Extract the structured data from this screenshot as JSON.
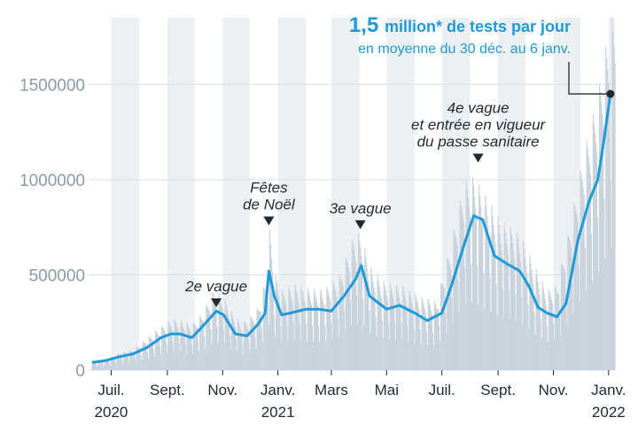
{
  "chart_data": {
    "type": "bar",
    "headline": {
      "value": "1,5",
      "text": "million* de tests par jour",
      "subtitle": "en moyenne du 30 déc. au 6 janv."
    },
    "y_ticks": [
      {
        "value": 0,
        "label": "0"
      },
      {
        "value": 500000,
        "label": "500000"
      },
      {
        "value": 1000000,
        "label": "1000000"
      },
      {
        "value": 1500000,
        "label": "1500000"
      }
    ],
    "ylim": [
      0,
      1850000
    ],
    "x_ticks": [
      {
        "date": "2020-07-01",
        "label": "Juil.",
        "year": "2020"
      },
      {
        "date": "2020-09-01",
        "label": "Sept.",
        "year": ""
      },
      {
        "date": "2020-11-01",
        "label": "Nov.",
        "year": ""
      },
      {
        "date": "2021-01-01",
        "label": "Janv.",
        "year": "2021"
      },
      {
        "date": "2021-03-01",
        "label": "Mars",
        "year": ""
      },
      {
        "date": "2021-05-01",
        "label": "Mai",
        "year": ""
      },
      {
        "date": "2021-07-01",
        "label": "Juil.",
        "year": ""
      },
      {
        "date": "2021-09-01",
        "label": "Sept.",
        "year": ""
      },
      {
        "date": "2021-11-01",
        "label": "Nov.",
        "year": ""
      },
      {
        "date": "2022-01-01",
        "label": "Janv.",
        "year": "2022"
      }
    ],
    "xlim": [
      "2020-06-10",
      "2022-01-08"
    ],
    "series": [
      {
        "kind": "daily_bars",
        "color": "#c9d3dc",
        "points": [
          [
            "2020-06-10",
            50000
          ],
          [
            "2020-06-25",
            60000
          ],
          [
            "2020-07-10",
            90000
          ],
          [
            "2020-07-25",
            110000
          ],
          [
            "2020-08-10",
            170000
          ],
          [
            "2020-08-25",
            230000
          ],
          [
            "2020-09-05",
            270000
          ],
          [
            "2020-09-18",
            260000
          ],
          [
            "2020-09-28",
            240000
          ],
          [
            "2020-10-10",
            300000
          ],
          [
            "2020-10-22",
            420000
          ],
          [
            "2020-11-01",
            400000
          ],
          [
            "2020-11-12",
            300000
          ],
          [
            "2020-11-22",
            250000
          ],
          [
            "2020-12-01",
            280000
          ],
          [
            "2020-12-10",
            330000
          ],
          [
            "2020-12-18",
            470000
          ],
          [
            "2020-12-23",
            740000
          ],
          [
            "2020-12-28",
            520000
          ],
          [
            "2021-01-05",
            420000
          ],
          [
            "2021-01-20",
            450000
          ],
          [
            "2021-02-05",
            430000
          ],
          [
            "2021-02-20",
            420000
          ],
          [
            "2021-03-10",
            500000
          ],
          [
            "2021-03-25",
            700000
          ],
          [
            "2021-04-02",
            720000
          ],
          [
            "2021-04-15",
            520000
          ],
          [
            "2021-05-01",
            460000
          ],
          [
            "2021-05-20",
            440000
          ],
          [
            "2021-06-10",
            380000
          ],
          [
            "2021-06-25",
            360000
          ],
          [
            "2021-07-10",
            650000
          ],
          [
            "2021-07-25",
            980000
          ],
          [
            "2021-08-05",
            1020000
          ],
          [
            "2021-08-20",
            900000
          ],
          [
            "2021-09-05",
            780000
          ],
          [
            "2021-09-25",
            720000
          ],
          [
            "2021-10-10",
            560000
          ],
          [
            "2021-10-25",
            420000
          ],
          [
            "2021-11-05",
            450000
          ],
          [
            "2021-11-20",
            780000
          ],
          [
            "2021-12-05",
            1150000
          ],
          [
            "2021-12-18",
            1400000
          ],
          [
            "2022-01-01",
            1780000
          ],
          [
            "2022-01-08",
            1900000
          ]
        ]
      },
      {
        "kind": "moving_average",
        "color": "#1f9ad8",
        "points": [
          [
            "2020-06-10",
            40000
          ],
          [
            "2020-06-25",
            50000
          ],
          [
            "2020-07-10",
            70000
          ],
          [
            "2020-07-25",
            85000
          ],
          [
            "2020-08-10",
            120000
          ],
          [
            "2020-08-25",
            170000
          ],
          [
            "2020-09-05",
            190000
          ],
          [
            "2020-09-15",
            190000
          ],
          [
            "2020-09-28",
            170000
          ],
          [
            "2020-10-10",
            230000
          ],
          [
            "2020-10-25",
            310000
          ],
          [
            "2020-11-02",
            290000
          ],
          [
            "2020-11-15",
            190000
          ],
          [
            "2020-11-28",
            180000
          ],
          [
            "2020-12-10",
            240000
          ],
          [
            "2020-12-18",
            300000
          ],
          [
            "2020-12-22",
            520000
          ],
          [
            "2020-12-28",
            390000
          ],
          [
            "2021-01-05",
            290000
          ],
          [
            "2021-01-15",
            300000
          ],
          [
            "2021-02-01",
            320000
          ],
          [
            "2021-02-15",
            320000
          ],
          [
            "2021-03-01",
            310000
          ],
          [
            "2021-03-15",
            390000
          ],
          [
            "2021-03-28",
            480000
          ],
          [
            "2021-04-03",
            550000
          ],
          [
            "2021-04-12",
            390000
          ],
          [
            "2021-04-20",
            360000
          ],
          [
            "2021-05-01",
            320000
          ],
          [
            "2021-05-15",
            340000
          ],
          [
            "2021-06-01",
            300000
          ],
          [
            "2021-06-15",
            260000
          ],
          [
            "2021-07-01",
            300000
          ],
          [
            "2021-07-12",
            450000
          ],
          [
            "2021-07-25",
            650000
          ],
          [
            "2021-08-05",
            810000
          ],
          [
            "2021-08-15",
            790000
          ],
          [
            "2021-08-28",
            600000
          ],
          [
            "2021-09-10",
            560000
          ],
          [
            "2021-09-25",
            520000
          ],
          [
            "2021-10-05",
            440000
          ],
          [
            "2021-10-15",
            330000
          ],
          [
            "2021-10-25",
            300000
          ],
          [
            "2021-11-05",
            280000
          ],
          [
            "2021-11-15",
            350000
          ],
          [
            "2021-11-28",
            680000
          ],
          [
            "2021-12-10",
            880000
          ],
          [
            "2021-12-20",
            1000000
          ],
          [
            "2021-12-26",
            1180000
          ],
          [
            "2022-01-03",
            1450000
          ]
        ]
      }
    ],
    "annotations": [
      {
        "date": "2020-10-25",
        "value": 330000,
        "lines": [
          "2e vague"
        ]
      },
      {
        "date": "2020-12-22",
        "value": 760000,
        "lines": [
          "Fêtes",
          "de Noël"
        ]
      },
      {
        "date": "2021-04-02",
        "value": 740000,
        "lines": [
          "3e vague"
        ]
      },
      {
        "date": "2021-08-10",
        "value": 1090000,
        "lines": [
          "4e vague",
          "et entrée en vigueur",
          "du passe sanitaire"
        ]
      }
    ],
    "highlight_point": {
      "date": "2022-01-03",
      "value": 1450000
    },
    "colors": {
      "bars": "#c9d3dc",
      "line": "#1f9ad8",
      "headline": "#1f9ad8",
      "text": "#1f2a33",
      "ytick": "#8a9bab",
      "month_band": "#edf0f3"
    }
  }
}
